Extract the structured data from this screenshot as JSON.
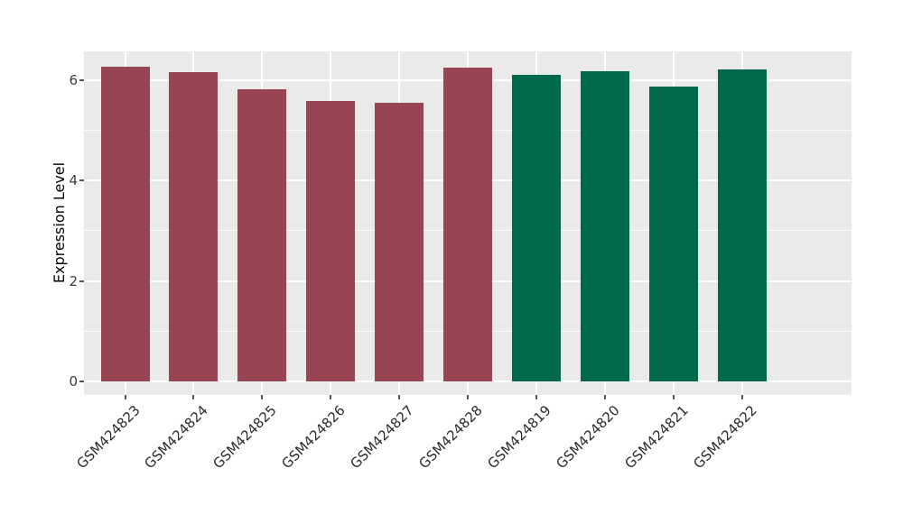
{
  "figure": {
    "background": "#FFFFFF",
    "panel_background": "#EAEAEA",
    "grid_color": "#FFFFFF",
    "tick_color": "#555555",
    "axis_text_color": "#2B2B2B"
  },
  "chart_data": {
    "type": "bar",
    "title": "",
    "xlabel": "",
    "ylabel": "Expression Level",
    "categories": [
      "GSM424823",
      "GSM424824",
      "GSM424825",
      "GSM424826",
      "GSM424827",
      "GSM424828",
      "GSM424819",
      "GSM424820",
      "GSM424821",
      "GSM424822"
    ],
    "values": [
      6.26,
      6.15,
      5.81,
      5.58,
      5.55,
      6.24,
      6.1,
      6.17,
      5.87,
      6.21
    ],
    "bar_colors": [
      "#994452",
      "#994452",
      "#994452",
      "#994452",
      "#994452",
      "#994452",
      "#01694B",
      "#01694B",
      "#01694B",
      "#01694B"
    ],
    "group_colors": {
      "left_group": "#994452",
      "right_group": "#01694B"
    },
    "yticks": [
      0,
      2,
      4,
      6
    ],
    "yticks_minor": [
      1,
      3,
      5
    ],
    "ylim": [
      -0.27,
      6.57
    ],
    "bar_width_fraction": 0.71,
    "x_tick_rotation": -45,
    "grid": "on",
    "legend": "none"
  }
}
